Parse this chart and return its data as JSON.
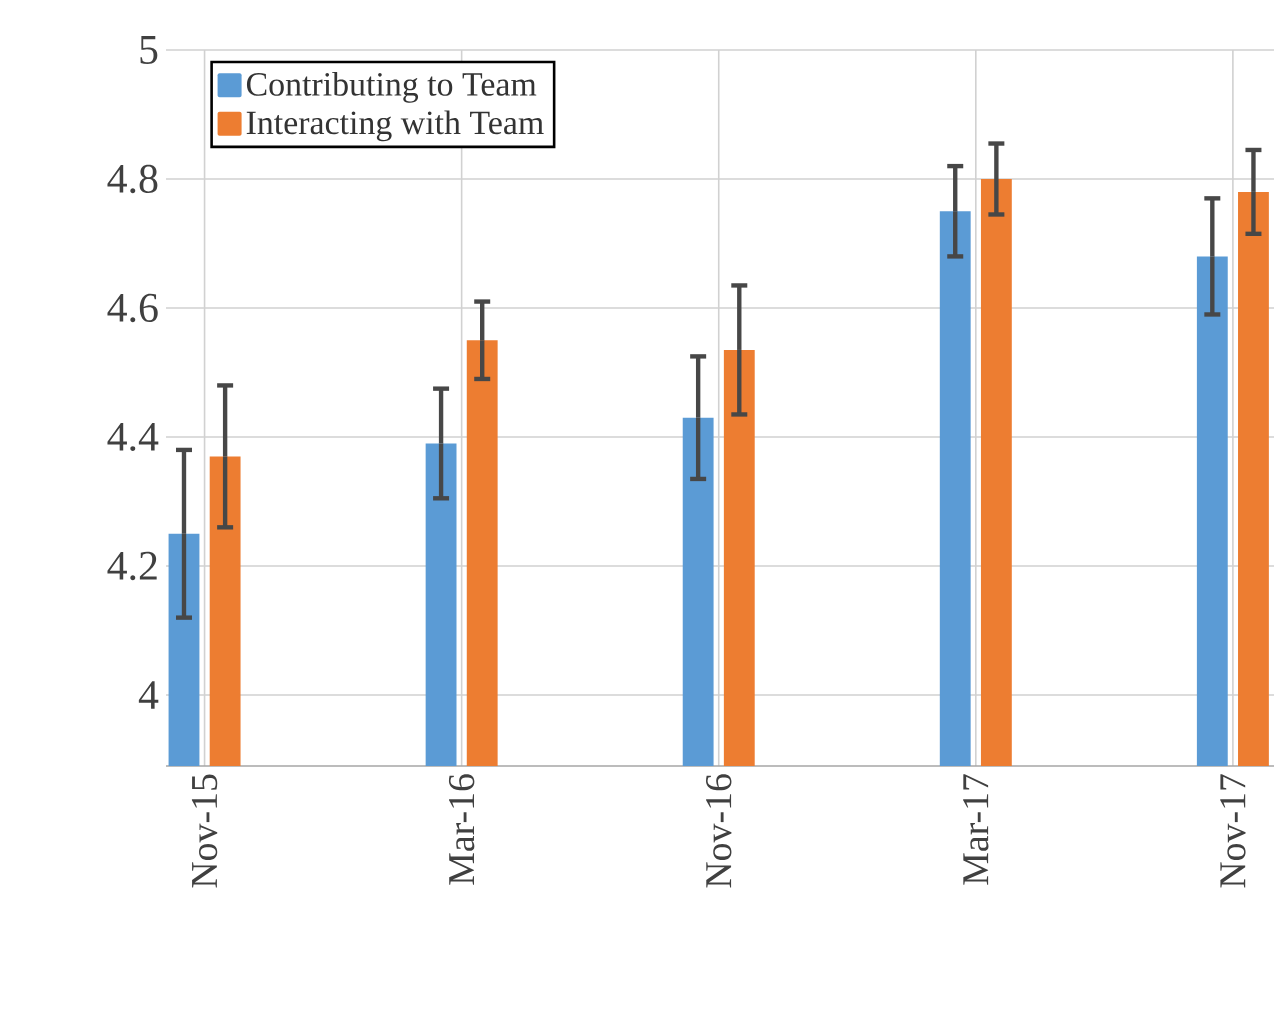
{
  "chart_data": {
    "type": "bar",
    "categories": [
      "Nov-15",
      "Mar-16",
      "Nov-16",
      "Mar-17",
      "Nov-17"
    ],
    "series": [
      {
        "name": "Contributing to Team",
        "color": "#5b9bd5",
        "values": [
          4.25,
          4.39,
          4.43,
          4.75,
          4.68
        ],
        "errors": [
          0.13,
          0.085,
          0.095,
          0.07,
          0.09
        ]
      },
      {
        "name": "Interacting with Team",
        "color": "#ed7d31",
        "values": [
          4.37,
          4.55,
          4.535,
          4.8,
          4.78
        ],
        "errors": [
          0.11,
          0.06,
          0.1,
          0.055,
          0.065
        ]
      }
    ],
    "ylim": [
      3.89,
      5
    ],
    "yticks": [
      4,
      4.2,
      4.4,
      4.6,
      4.8,
      5
    ],
    "grid": true,
    "legend": "top left"
  }
}
